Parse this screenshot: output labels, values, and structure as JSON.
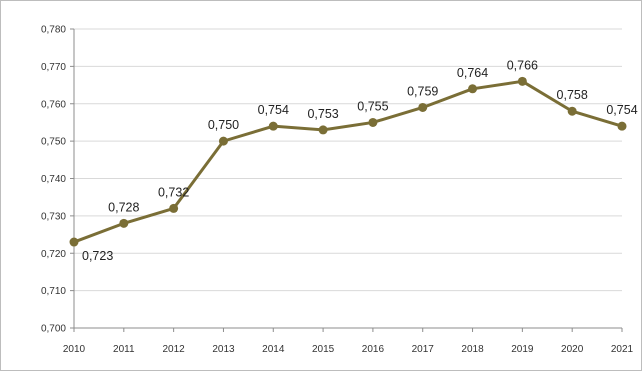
{
  "chart_data": {
    "type": "line",
    "title": "",
    "xlabel": "",
    "ylabel": "",
    "categories": [
      "2010",
      "2011",
      "2012",
      "2013",
      "2014",
      "2015",
      "2016",
      "2017",
      "2018",
      "2019",
      "2020",
      "2021"
    ],
    "series": [
      {
        "values": [
          0.723,
          0.728,
          0.732,
          0.75,
          0.754,
          0.753,
          0.755,
          0.759,
          0.764,
          0.766,
          0.758,
          0.754
        ],
        "labels": [
          "0,723",
          "0,728",
          "0,732",
          "0,750",
          "0,754",
          "0,753",
          "0,755",
          "0,759",
          "0,764",
          "0,766",
          "0,758",
          "0,754"
        ],
        "label_positions": [
          "below-right",
          "above",
          "above",
          "above",
          "above",
          "above",
          "above",
          "above",
          "above",
          "above",
          "above",
          "above"
        ],
        "color": "#7a6e36"
      }
    ],
    "ylim": [
      0.7,
      0.78
    ],
    "yticks": [
      0.7,
      0.71,
      0.72,
      0.73,
      0.74,
      0.75,
      0.76,
      0.77,
      0.78
    ],
    "ytick_labels": [
      "0,700",
      "0,710",
      "0,720",
      "0,730",
      "0,740",
      "0,750",
      "0,760",
      "0,770",
      "0,780"
    ],
    "grid": "horizontal",
    "grid_color": "#d9d9d9",
    "axis_color": "#8c8c8c",
    "legend": "none"
  }
}
